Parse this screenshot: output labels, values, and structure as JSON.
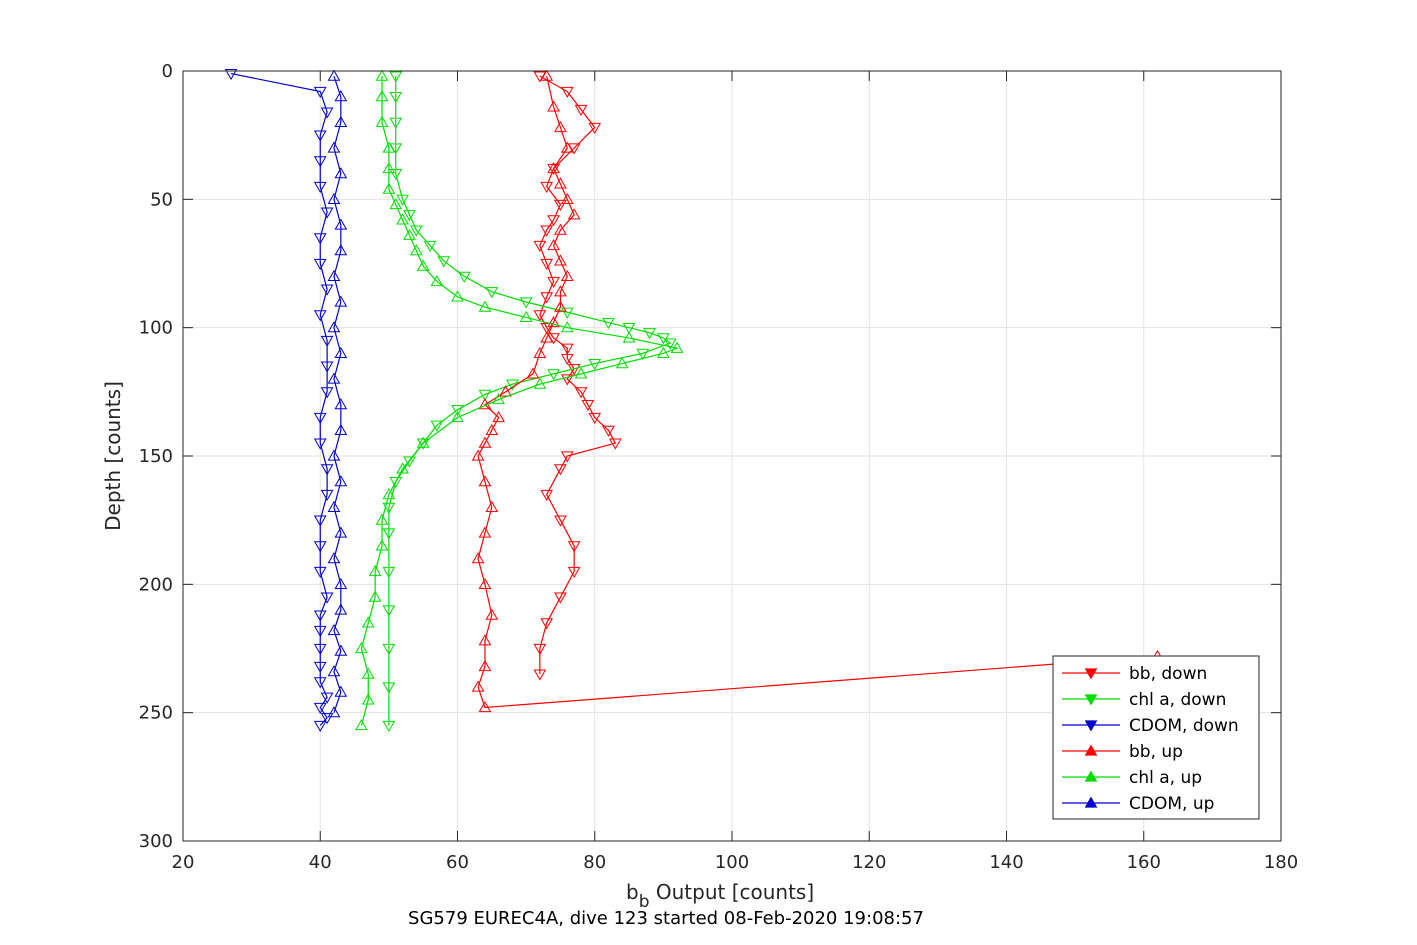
{
  "chart_data": {
    "type": "line",
    "title": "",
    "caption": "SG579 EUREC4A, dive 123 started 08-Feb-2020 19:08:57",
    "xlabel_main": "b",
    "xlabel_sub": "b",
    "xlabel_rest": " Output [counts]",
    "ylabel": "Depth [counts]",
    "xlim": [
      20,
      180
    ],
    "ylim": [
      0,
      300
    ],
    "y_reversed": true,
    "grid": true,
    "legend_position": "bottom-right",
    "x_ticks": [
      "20",
      "40",
      "60",
      "80",
      "100",
      "120",
      "140",
      "160",
      "180"
    ],
    "y_ticks": [
      "0",
      "50",
      "100",
      "150",
      "200",
      "250",
      "300"
    ],
    "series": [
      {
        "name": "bb, down",
        "color": "#ff0000",
        "marker": "triangle-down",
        "x": [
          72,
          76,
          78,
          80,
          77,
          74,
          73,
          75,
          74,
          73,
          72,
          73,
          74,
          73,
          72,
          73,
          74,
          76,
          76,
          77,
          76,
          78,
          79,
          80,
          82,
          83,
          76,
          75,
          73,
          75,
          77,
          77,
          75,
          73,
          72,
          72
        ],
        "y": [
          2,
          8,
          15,
          22,
          30,
          38,
          45,
          52,
          58,
          62,
          68,
          75,
          82,
          88,
          95,
          100,
          104,
          108,
          112,
          116,
          120,
          125,
          130,
          135,
          140,
          145,
          150,
          155,
          165,
          175,
          185,
          195,
          205,
          215,
          225,
          235
        ]
      },
      {
        "name": "chl a, down",
        "color": "#00dd00",
        "marker": "triangle-down",
        "x": [
          51,
          51,
          51,
          51,
          51,
          52,
          53,
          54,
          56,
          58,
          61,
          65,
          70,
          76,
          82,
          85,
          88,
          90,
          91,
          87,
          80,
          74,
          68,
          64,
          60,
          57,
          55,
          53,
          51,
          50,
          50,
          50,
          50,
          50,
          50,
          50
        ],
        "y": [
          2,
          10,
          20,
          30,
          40,
          50,
          56,
          62,
          68,
          74,
          80,
          86,
          90,
          94,
          98,
          100,
          102,
          104,
          106,
          110,
          114,
          118,
          122,
          126,
          132,
          138,
          145,
          152,
          160,
          170,
          180,
          195,
          210,
          225,
          240,
          255
        ]
      },
      {
        "name": "CDOM, down",
        "color": "#0000cc",
        "marker": "triangle-down",
        "x": [
          27,
          40,
          41,
          40,
          40,
          40,
          41,
          40,
          40,
          41,
          40,
          41,
          41,
          41,
          40,
          40,
          41,
          41,
          40,
          40,
          40,
          41,
          40,
          40,
          40,
          40,
          40,
          41,
          40,
          41,
          40
        ],
        "y": [
          1,
          8,
          16,
          25,
          35,
          45,
          55,
          65,
          75,
          85,
          95,
          105,
          115,
          125,
          135,
          145,
          155,
          165,
          175,
          185,
          195,
          205,
          212,
          218,
          225,
          232,
          238,
          244,
          248,
          252,
          255
        ]
      },
      {
        "name": "bb, up",
        "color": "#ff0000",
        "marker": "triangle-up",
        "x": [
          162,
          64,
          63,
          64,
          64,
          65,
          64,
          63,
          64,
          65,
          64,
          63,
          64,
          65,
          66,
          64,
          67,
          71,
          72,
          73,
          74,
          75,
          75,
          76,
          75,
          74,
          75,
          77,
          76,
          75,
          74,
          76,
          75,
          74,
          73
        ],
        "y": [
          228,
          248,
          240,
          232,
          222,
          212,
          200,
          190,
          180,
          170,
          160,
          150,
          145,
          140,
          135,
          130,
          125,
          118,
          110,
          104,
          98,
          92,
          86,
          80,
          74,
          68,
          62,
          56,
          50,
          44,
          38,
          30,
          22,
          14,
          2
        ]
      },
      {
        "name": "chl a, up",
        "color": "#00dd00",
        "marker": "triangle-up",
        "x": [
          46,
          47,
          47,
          46,
          47,
          48,
          48,
          49,
          49,
          50,
          52,
          55,
          60,
          66,
          72,
          78,
          84,
          90,
          92,
          85,
          76,
          70,
          64,
          60,
          57,
          55,
          54,
          53,
          52,
          51,
          50,
          50,
          50,
          49,
          49,
          49
        ],
        "y": [
          255,
          245,
          235,
          225,
          215,
          205,
          195,
          185,
          175,
          165,
          155,
          145,
          135,
          128,
          122,
          118,
          114,
          110,
          108,
          104,
          100,
          96,
          92,
          88,
          82,
          76,
          70,
          64,
          58,
          52,
          46,
          38,
          30,
          20,
          10,
          2
        ]
      },
      {
        "name": "CDOM, up",
        "color": "#0000cc",
        "marker": "triangle-up",
        "x": [
          42,
          43,
          42,
          43,
          42,
          43,
          43,
          42,
          43,
          42,
          43,
          42,
          43,
          43,
          42,
          43,
          42,
          43,
          42,
          43,
          43,
          42,
          43,
          42,
          43,
          43,
          42
        ],
        "y": [
          250,
          242,
          234,
          226,
          218,
          210,
          200,
          190,
          180,
          170,
          160,
          150,
          140,
          130,
          120,
          110,
          100,
          90,
          80,
          70,
          60,
          50,
          40,
          30,
          20,
          10,
          2
        ]
      }
    ]
  }
}
